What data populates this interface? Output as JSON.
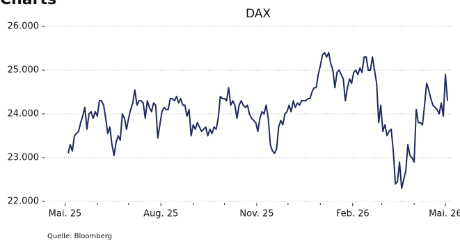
{
  "page_title": "Charts",
  "chart_data": {
    "type": "line",
    "title": "DAX",
    "source": "Quelle: Bloomberg",
    "x": [
      3,
      5,
      7,
      9,
      11,
      13,
      15,
      17,
      19,
      21,
      23,
      25,
      27,
      29,
      31,
      33,
      35,
      37,
      39,
      41,
      43,
      45,
      47,
      49,
      51,
      53,
      55,
      57,
      59,
      61,
      63,
      65,
      67,
      69,
      71,
      73,
      75,
      77,
      79,
      81,
      83,
      85,
      87,
      89,
      91,
      93,
      95,
      97,
      99,
      101,
      103,
      105,
      107,
      109,
      111,
      113,
      115,
      117,
      119,
      121,
      123,
      125,
      127,
      129,
      131,
      133,
      135,
      137,
      139,
      141,
      143,
      145,
      147,
      149,
      151,
      153,
      155,
      157,
      159,
      161,
      163,
      165,
      167,
      169,
      171,
      173,
      175,
      177,
      179,
      181,
      183,
      185,
      187,
      189,
      191,
      193,
      195,
      197,
      199,
      201,
      203,
      205,
      207,
      209,
      211,
      213,
      215,
      217,
      219,
      221,
      223,
      225,
      227,
      229,
      231,
      233,
      235,
      237,
      239,
      241,
      243,
      245,
      247,
      249,
      251,
      253,
      255,
      257,
      259,
      261,
      263,
      265,
      267,
      269,
      271,
      273,
      275,
      277,
      279,
      281,
      283,
      285,
      287,
      289,
      291,
      293,
      295,
      297,
      299,
      301,
      303,
      305,
      307,
      309,
      311,
      313,
      315,
      317,
      319,
      321,
      323,
      325,
      327,
      329,
      331,
      333,
      335,
      337,
      339,
      341,
      343,
      345,
      347,
      349,
      351,
      353,
      355,
      357,
      359,
      361,
      363,
      365,
      367
    ],
    "series": [
      {
        "name": "DAX",
        "color": "#1f2a5c",
        "values": [
          23100,
          23300,
          23150,
          23500,
          23550,
          23600,
          23800,
          23950,
          24150,
          23650,
          24000,
          24050,
          23900,
          24050,
          23950,
          24300,
          24300,
          24200,
          23900,
          23550,
          23700,
          23300,
          23050,
          23350,
          23500,
          23400,
          24000,
          23900,
          23650,
          23900,
          24100,
          24250,
          24550,
          24200,
          24300,
          24300,
          24250,
          23900,
          24300,
          24150,
          24050,
          24250,
          24200,
          23450,
          23750,
          24050,
          24150,
          24100,
          24100,
          24350,
          24350,
          24300,
          24400,
          24250,
          24350,
          24200,
          24200,
          23950,
          24100,
          23500,
          23750,
          23650,
          23800,
          23700,
          23600,
          23650,
          23700,
          23500,
          23650,
          23550,
          23700,
          23650,
          23900,
          24400,
          24350,
          24350,
          24300,
          24600,
          24200,
          24300,
          24200,
          23900,
          24200,
          24300,
          24200,
          24150,
          24200,
          24000,
          23900,
          23850,
          23800,
          23600,
          23900,
          24050,
          24000,
          24200,
          23900,
          23300,
          23150,
          23100,
          23200,
          23700,
          23850,
          23750,
          24000,
          24050,
          24200,
          24050,
          24300,
          24150,
          24250,
          24200,
          24300,
          24300,
          24300,
          24350,
          24350,
          24500,
          24600,
          24600,
          24900,
          25100,
          25350,
          25400,
          25300,
          25400,
          25150,
          25000,
          24600,
          24950,
          25000,
          24900,
          24800,
          24300,
          24600,
          24800,
          24700,
          24950,
          25000,
          24900,
          25050,
          24950,
          25300,
          25300,
          25000,
          25000,
          25300,
          25000,
          24700,
          23800,
          24200,
          23600,
          23750,
          23500,
          23600,
          23650,
          23150,
          22400,
          22450,
          22900,
          22300,
          22500,
          22700,
          23300,
          23050,
          23000,
          22900,
          24100,
          23800,
          23800,
          23750,
          24200,
          24700,
          24550,
          24350,
          24200,
          24150,
          24100,
          24000,
          24250,
          23950,
          24900,
          24300
        ]
      }
    ],
    "xlim": [
      -17,
      373
    ],
    "xticks": [
      {
        "value": 0,
        "label": "Mai. 25"
      },
      {
        "value": 92,
        "label": "Aug. 25"
      },
      {
        "value": 184,
        "label": "Nov. 25"
      },
      {
        "value": 276,
        "label": "Feb. 26"
      },
      {
        "value": 365,
        "label": "Mai. 26"
      }
    ],
    "xminor": [
      31,
      61,
      123,
      153,
      214,
      245,
      304,
      335
    ],
    "ylim": [
      22000,
      26000
    ],
    "yticks": [
      {
        "value": 22000,
        "label": "22.000"
      },
      {
        "value": 23000,
        "label": "23.000"
      },
      {
        "value": 24000,
        "label": "24.000"
      },
      {
        "value": 25000,
        "label": "25.000"
      },
      {
        "value": 26000,
        "label": "26.000"
      }
    ],
    "grid": true
  }
}
